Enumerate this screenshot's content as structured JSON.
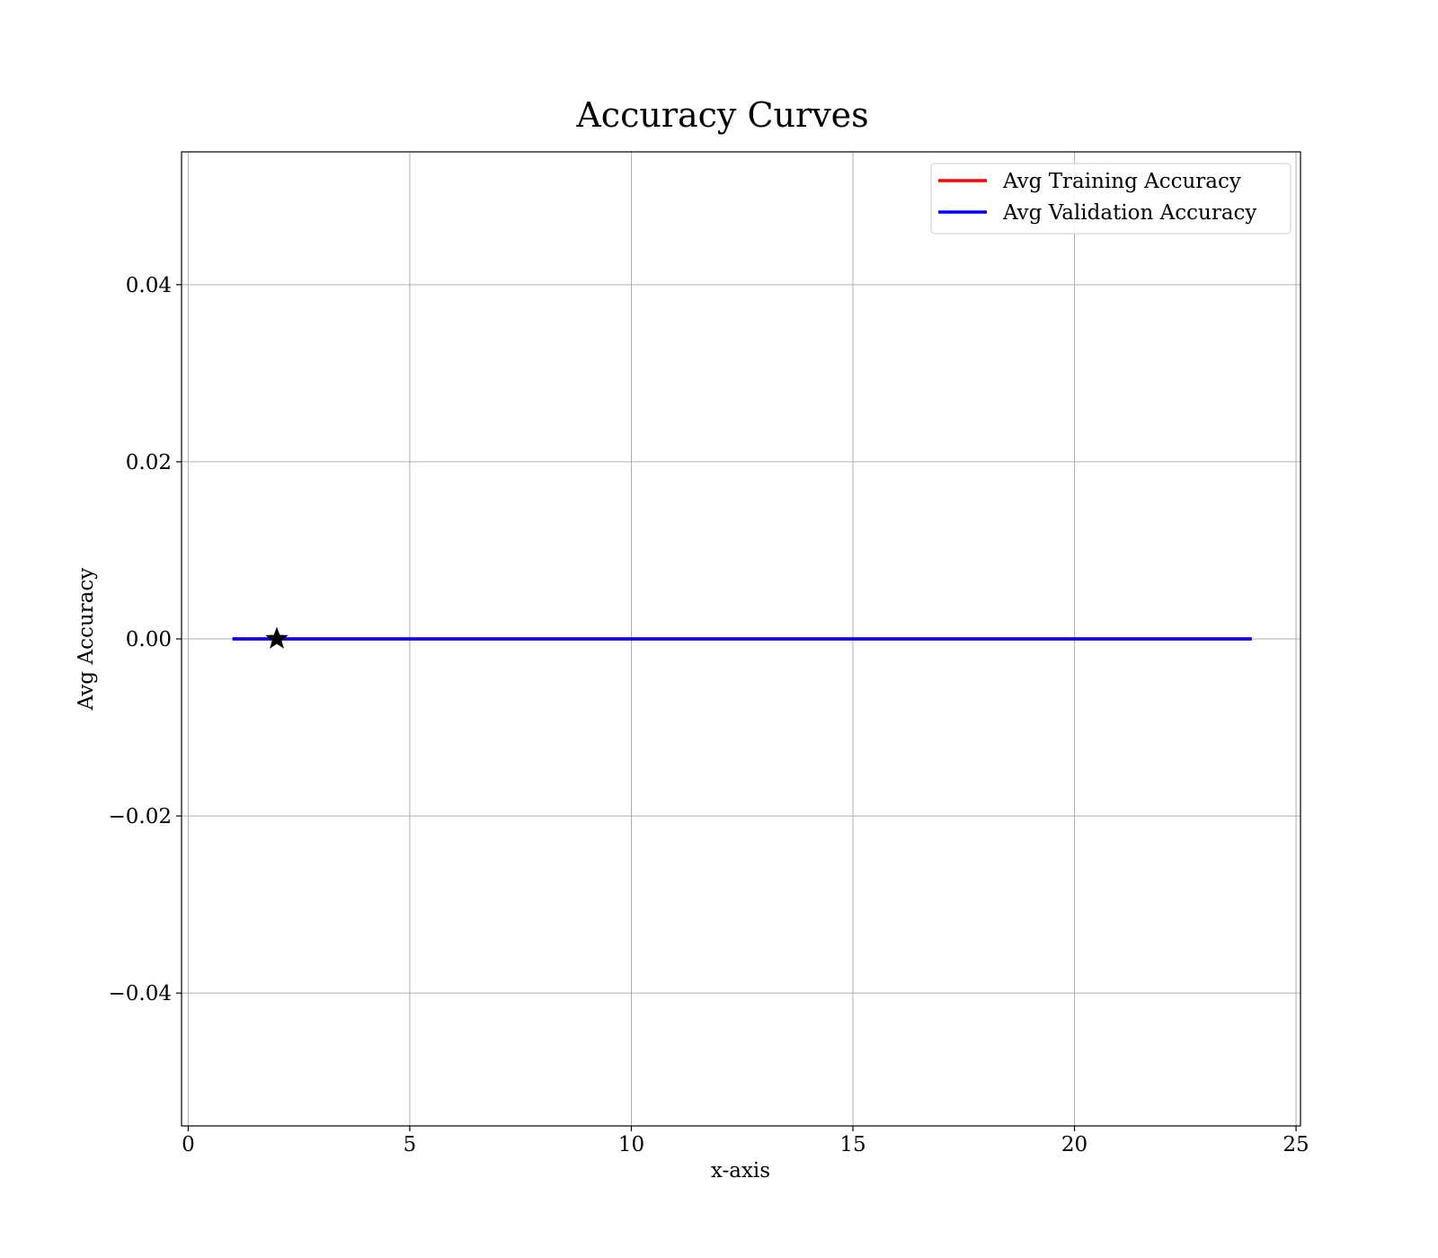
{
  "chart_data": {
    "type": "line",
    "title": "Accuracy Curves",
    "xlabel": "x-axis",
    "ylabel": "Avg Accuracy",
    "xlim": [
      -0.15,
      25.1
    ],
    "ylim": [
      -0.055,
      0.055
    ],
    "x_ticks": [
      {
        "value": 0,
        "label": "0"
      },
      {
        "value": 5,
        "label": "5"
      },
      {
        "value": 10,
        "label": "10"
      },
      {
        "value": 15,
        "label": "15"
      },
      {
        "value": 20,
        "label": "20"
      },
      {
        "value": 25,
        "label": "25"
      }
    ],
    "y_ticks": [
      {
        "value": -0.04,
        "label": "−0.04"
      },
      {
        "value": -0.02,
        "label": "−0.02"
      },
      {
        "value": 0.0,
        "label": "0.00"
      },
      {
        "value": 0.02,
        "label": "0.02"
      },
      {
        "value": 0.04,
        "label": "0.04"
      }
    ],
    "grid": true,
    "legend_position": "top-right",
    "series": [
      {
        "name": "Avg Training Accuracy",
        "color": "#ff0000",
        "x": [
          1,
          2,
          3,
          4,
          5,
          6,
          7,
          8,
          9,
          10,
          11,
          12,
          13,
          14,
          15,
          16,
          17,
          18,
          19,
          20,
          21,
          22,
          23,
          24
        ],
        "y": [
          0,
          0,
          0,
          0,
          0,
          0,
          0,
          0,
          0,
          0,
          0,
          0,
          0,
          0,
          0,
          0,
          0,
          0,
          0,
          0,
          0,
          0,
          0,
          0
        ]
      },
      {
        "name": "Avg Validation Accuracy",
        "color": "#0000ff",
        "x": [
          1,
          2,
          3,
          4,
          5,
          6,
          7,
          8,
          9,
          10,
          11,
          12,
          13,
          14,
          15,
          16,
          17,
          18,
          19,
          20,
          21,
          22,
          23,
          24
        ],
        "y": [
          0,
          0,
          0,
          0,
          0,
          0,
          0,
          0,
          0,
          0,
          0,
          0,
          0,
          0,
          0,
          0,
          0,
          0,
          0,
          0,
          0,
          0,
          0,
          0
        ]
      }
    ],
    "markers": [
      {
        "x": 2,
        "y": 0.0,
        "symbol": "star",
        "color": "#000000"
      }
    ]
  }
}
